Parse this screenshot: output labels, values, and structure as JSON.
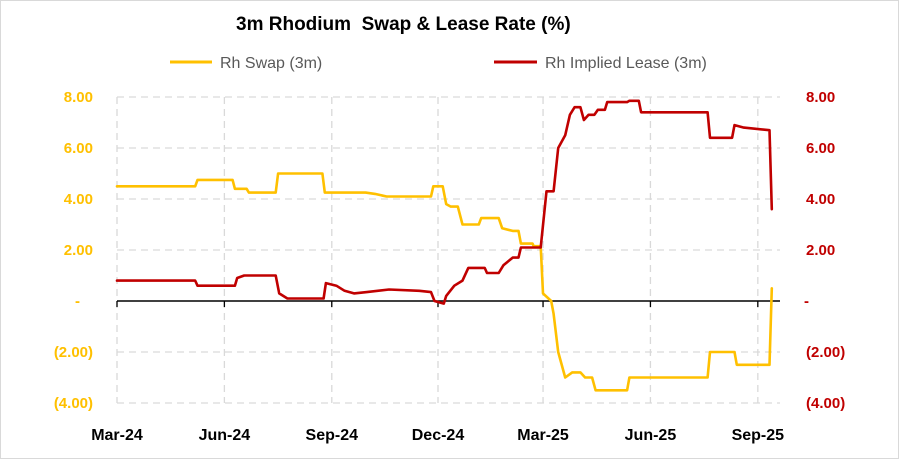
{
  "chart_data": {
    "type": "line",
    "title": "3m Rhodium  Swap & Lease Rate (%)",
    "colors": {
      "swap": "#FFC000",
      "lease": "#C00000",
      "grid": "#D9D9D9",
      "axis": "#000000"
    },
    "x_range": [
      "2024-03-01",
      "2025-09-20"
    ],
    "x_ticks": [
      {
        "date": "2024-03-01",
        "label": "Mar-24"
      },
      {
        "date": "2024-06-01",
        "label": "Jun-24"
      },
      {
        "date": "2024-09-01",
        "label": "Sep-24"
      },
      {
        "date": "2024-12-01",
        "label": "Dec-24"
      },
      {
        "date": "2025-03-01",
        "label": "Mar-25"
      },
      {
        "date": "2025-06-01",
        "label": "Jun-25"
      },
      {
        "date": "2025-09-01",
        "label": "Sep-25"
      }
    ],
    "y_axis_left": {
      "range": [
        -4,
        8
      ],
      "ticks": [
        {
          "value": 8,
          "label": "8.00"
        },
        {
          "value": 6,
          "label": "6.00"
        },
        {
          "value": 4,
          "label": "4.00"
        },
        {
          "value": 2,
          "label": "2.00"
        },
        {
          "value": 0,
          "label": "-"
        },
        {
          "value": -2,
          "label": "(2.00)"
        },
        {
          "value": -4,
          "label": "(4.00)"
        }
      ]
    },
    "y_axis_right": {
      "range": [
        -4,
        8
      ],
      "ticks": [
        {
          "value": 8,
          "label": "8.00"
        },
        {
          "value": 6,
          "label": "6.00"
        },
        {
          "value": 4,
          "label": "4.00"
        },
        {
          "value": 2,
          "label": "2.00"
        },
        {
          "value": 0,
          "label": "-"
        },
        {
          "value": -2,
          "label": "(2.00)"
        },
        {
          "value": -4,
          "label": "(4.00)"
        }
      ]
    },
    "grid": true,
    "legend_position": "top",
    "series": [
      {
        "name": "Rh Swap (3m)",
        "key": "swap",
        "axis": "left",
        "points": [
          [
            "2024-03-01",
            4.5
          ],
          [
            "2024-05-07",
            4.5
          ],
          [
            "2024-05-09",
            4.75
          ],
          [
            "2024-06-08",
            4.75
          ],
          [
            "2024-06-10",
            4.4
          ],
          [
            "2024-06-20",
            4.4
          ],
          [
            "2024-06-22",
            4.25
          ],
          [
            "2024-07-15",
            4.25
          ],
          [
            "2024-07-17",
            5.0
          ],
          [
            "2024-08-24",
            5.0
          ],
          [
            "2024-08-26",
            4.25
          ],
          [
            "2024-09-30",
            4.25
          ],
          [
            "2024-10-08",
            4.2
          ],
          [
            "2024-10-18",
            4.1
          ],
          [
            "2024-11-25",
            4.1
          ],
          [
            "2024-11-27",
            4.5
          ],
          [
            "2024-12-05",
            4.5
          ],
          [
            "2024-12-08",
            3.8
          ],
          [
            "2024-12-12",
            3.7
          ],
          [
            "2024-12-18",
            3.7
          ],
          [
            "2024-12-22",
            3.0
          ],
          [
            "2025-01-05",
            3.0
          ],
          [
            "2025-01-07",
            3.25
          ],
          [
            "2025-01-22",
            3.25
          ],
          [
            "2025-01-25",
            2.85
          ],
          [
            "2025-02-03",
            2.75
          ],
          [
            "2025-02-08",
            2.75
          ],
          [
            "2025-02-10",
            2.25
          ],
          [
            "2025-02-20",
            2.25
          ],
          [
            "2025-02-21",
            2.15
          ],
          [
            "2025-02-27",
            2.15
          ],
          [
            "2025-03-01",
            0.3
          ],
          [
            "2025-03-08",
            0.0
          ],
          [
            "2025-03-10",
            -0.5
          ],
          [
            "2025-03-14",
            -2.0
          ],
          [
            "2025-03-20",
            -3.0
          ],
          [
            "2025-03-26",
            -2.8
          ],
          [
            "2025-04-02",
            -2.8
          ],
          [
            "2025-04-06",
            -3.0
          ],
          [
            "2025-04-12",
            -3.0
          ],
          [
            "2025-04-15",
            -3.5
          ],
          [
            "2025-05-12",
            -3.5
          ],
          [
            "2025-05-14",
            -3.0
          ],
          [
            "2025-07-20",
            -3.0
          ],
          [
            "2025-07-22",
            -2.0
          ],
          [
            "2025-08-12",
            -2.0
          ],
          [
            "2025-08-14",
            -2.5
          ],
          [
            "2025-09-10",
            -2.5
          ],
          [
            "2025-09-11",
            -2.5
          ],
          [
            "2025-09-13",
            0.5
          ]
        ]
      },
      {
        "name": "Rh Implied Lease (3m)",
        "key": "lease",
        "axis": "right",
        "points": [
          [
            "2024-03-01",
            0.8
          ],
          [
            "2024-05-07",
            0.8
          ],
          [
            "2024-05-09",
            0.6
          ],
          [
            "2024-06-10",
            0.6
          ],
          [
            "2024-06-12",
            0.9
          ],
          [
            "2024-06-18",
            1.0
          ],
          [
            "2024-07-15",
            1.0
          ],
          [
            "2024-07-18",
            0.3
          ],
          [
            "2024-07-25",
            0.1
          ],
          [
            "2024-08-25",
            0.1
          ],
          [
            "2024-08-27",
            0.7
          ],
          [
            "2024-09-05",
            0.6
          ],
          [
            "2024-09-12",
            0.4
          ],
          [
            "2024-09-20",
            0.3
          ],
          [
            "2024-10-01",
            0.35
          ],
          [
            "2024-10-20",
            0.45
          ],
          [
            "2024-11-15",
            0.4
          ],
          [
            "2024-11-25",
            0.35
          ],
          [
            "2024-11-28",
            0.0
          ],
          [
            "2024-12-06",
            -0.1
          ],
          [
            "2024-12-08",
            0.2
          ],
          [
            "2024-12-15",
            0.6
          ],
          [
            "2024-12-22",
            0.8
          ],
          [
            "2024-12-27",
            1.3
          ],
          [
            "2025-01-10",
            1.3
          ],
          [
            "2025-01-12",
            1.1
          ],
          [
            "2025-01-22",
            1.1
          ],
          [
            "2025-01-26",
            1.4
          ],
          [
            "2025-02-03",
            1.7
          ],
          [
            "2025-02-08",
            1.7
          ],
          [
            "2025-02-10",
            2.1
          ],
          [
            "2025-02-27",
            2.1
          ],
          [
            "2025-03-04",
            4.3
          ],
          [
            "2025-03-10",
            4.3
          ],
          [
            "2025-03-14",
            6.0
          ],
          [
            "2025-03-20",
            6.5
          ],
          [
            "2025-03-24",
            7.3
          ],
          [
            "2025-03-28",
            7.6
          ],
          [
            "2025-04-02",
            7.6
          ],
          [
            "2025-04-05",
            7.1
          ],
          [
            "2025-04-09",
            7.3
          ],
          [
            "2025-04-14",
            7.3
          ],
          [
            "2025-04-17",
            7.5
          ],
          [
            "2025-04-23",
            7.5
          ],
          [
            "2025-04-25",
            7.8
          ],
          [
            "2025-05-12",
            7.8
          ],
          [
            "2025-05-14",
            7.85
          ],
          [
            "2025-05-22",
            7.85
          ],
          [
            "2025-05-24",
            7.4
          ],
          [
            "2025-07-20",
            7.4
          ],
          [
            "2025-07-22",
            6.4
          ],
          [
            "2025-08-10",
            6.4
          ],
          [
            "2025-08-12",
            6.9
          ],
          [
            "2025-08-20",
            6.8
          ],
          [
            "2025-09-11",
            6.7
          ],
          [
            "2025-09-13",
            3.6
          ]
        ]
      }
    ]
  }
}
